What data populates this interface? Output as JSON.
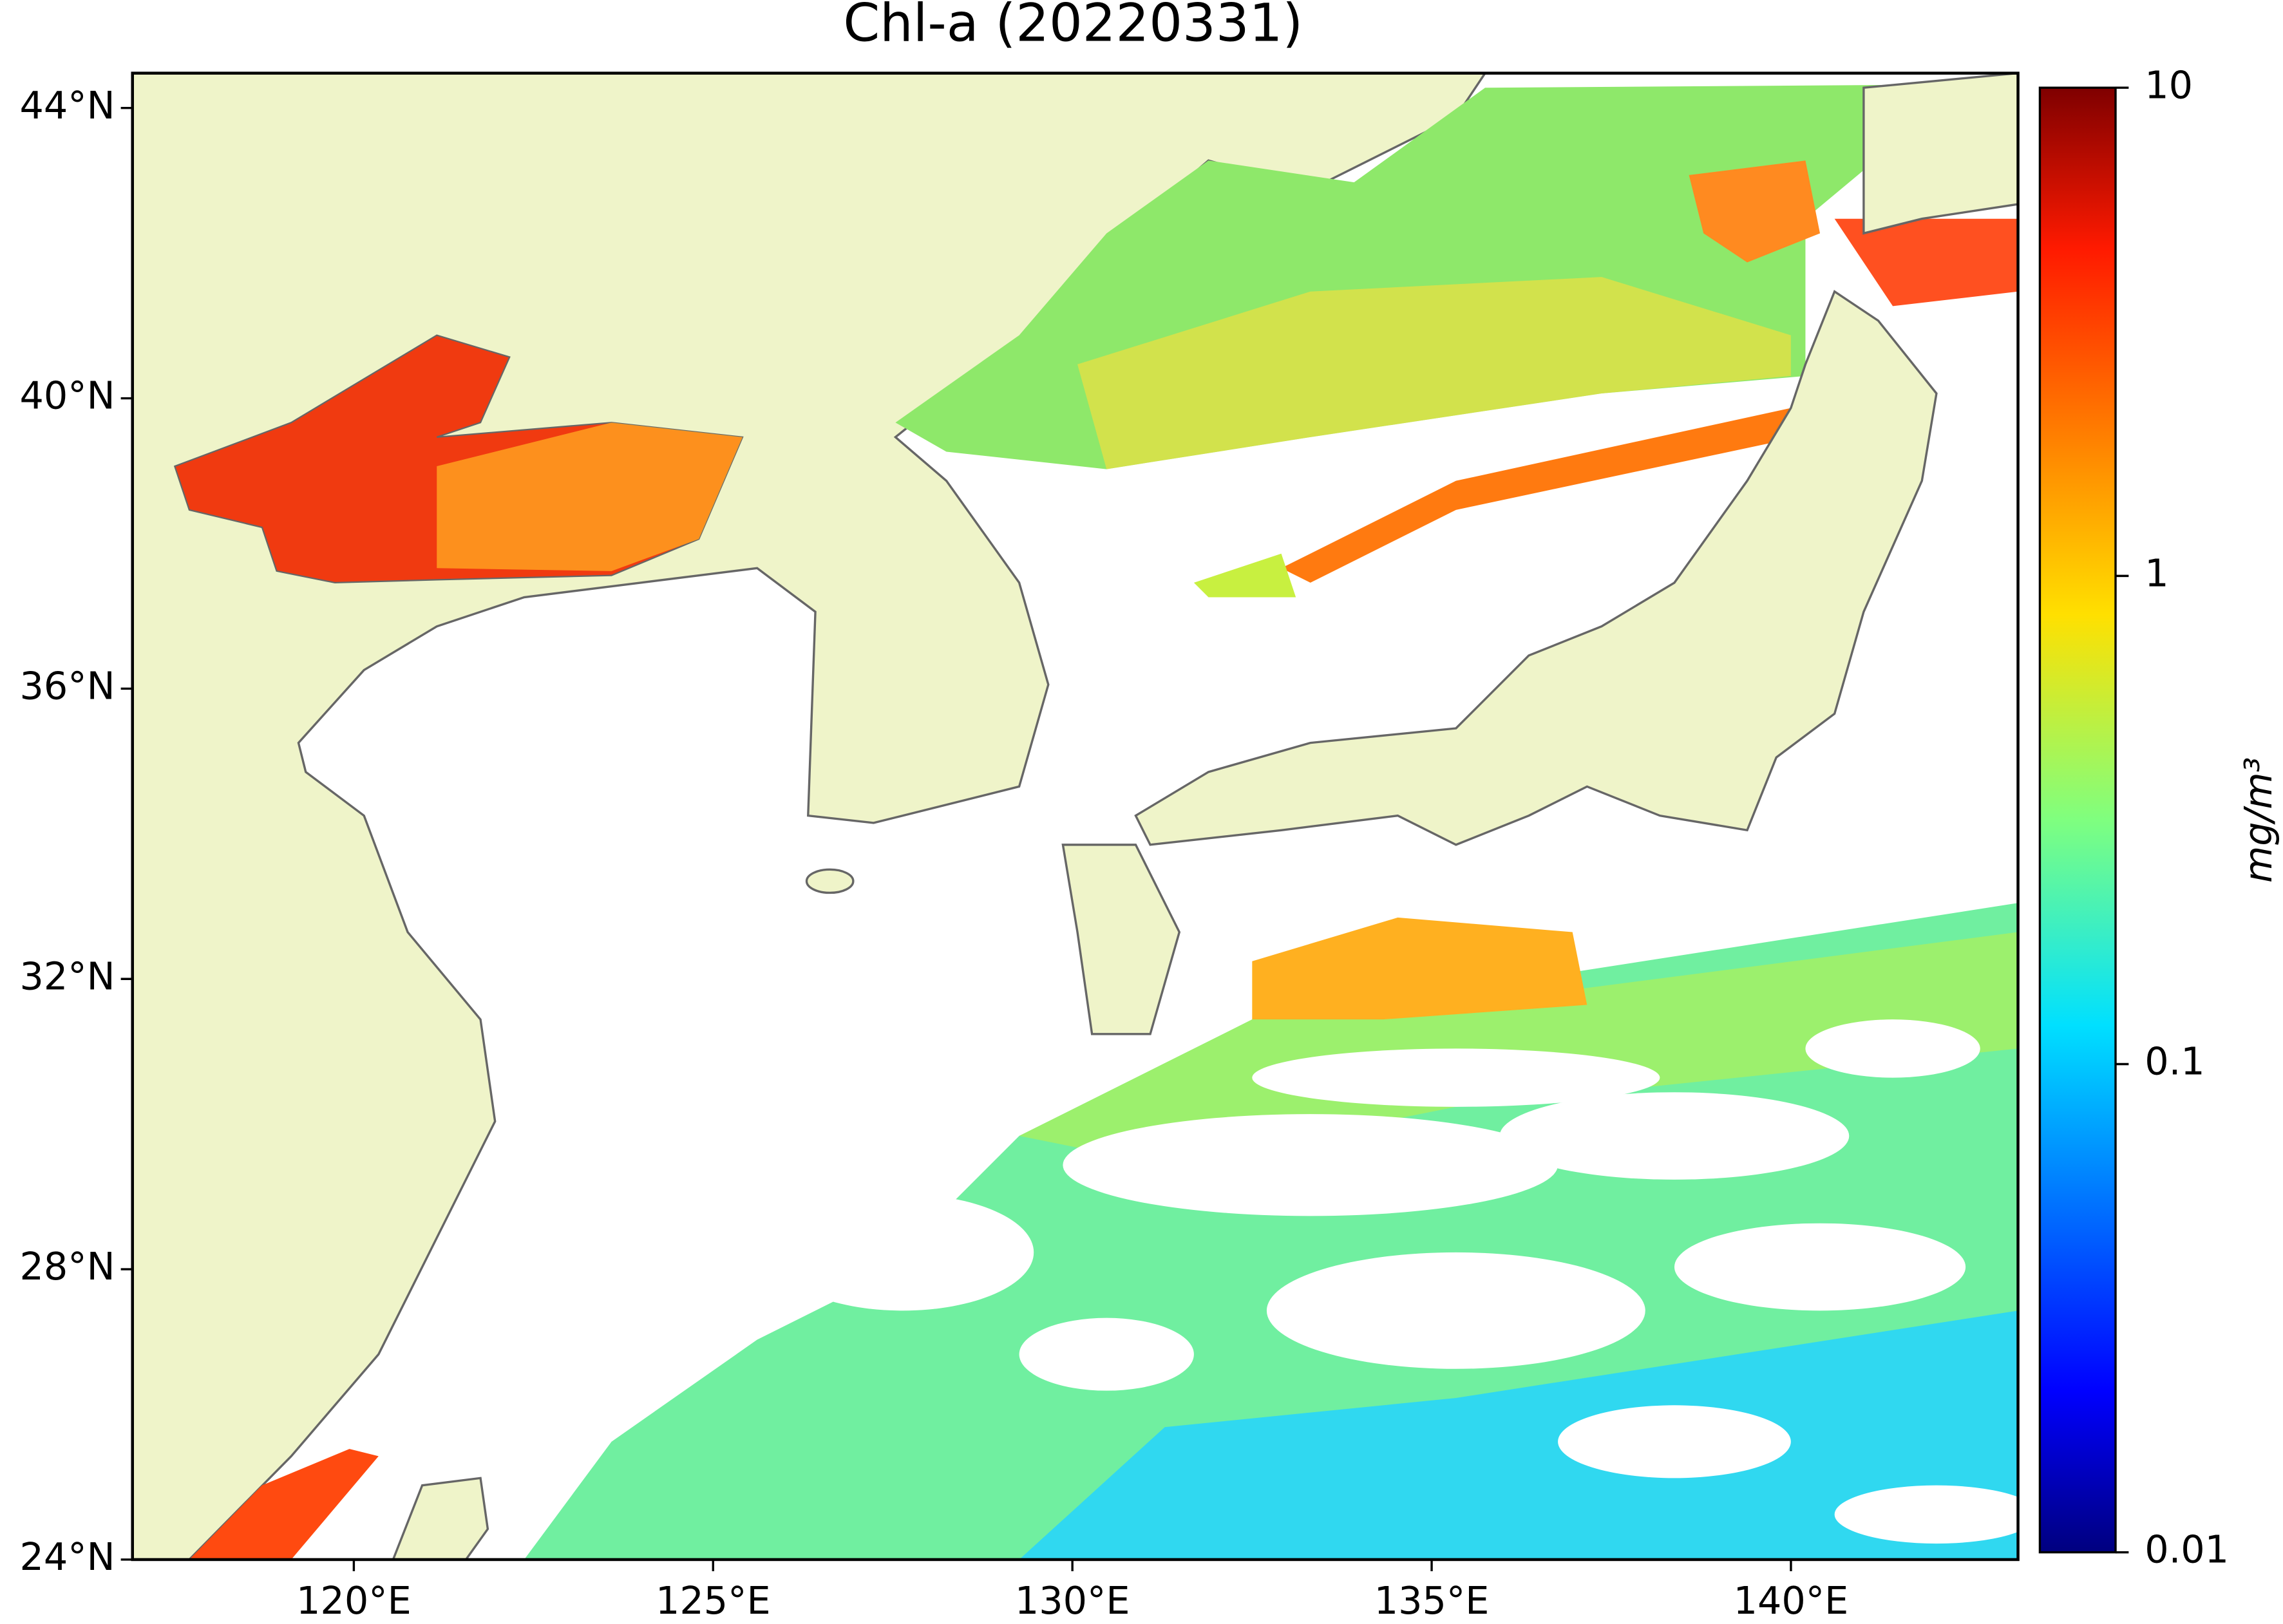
{
  "title": "Chl-a (20220331)",
  "map": {
    "xlim": [
      116.92,
      143.16
    ],
    "ylim": [
      24,
      44.48
    ],
    "xticks": [
      {
        "value": 120,
        "label": "120°E"
      },
      {
        "value": 125,
        "label": "125°E"
      },
      {
        "value": 130,
        "label": "130°E"
      },
      {
        "value": 135,
        "label": "135°E"
      },
      {
        "value": 140,
        "label": "140°E"
      }
    ],
    "yticks": [
      {
        "value": 24,
        "label": "24°N"
      },
      {
        "value": 28,
        "label": "28°N"
      },
      {
        "value": 32,
        "label": "32°N"
      },
      {
        "value": 36,
        "label": "36°N"
      },
      {
        "value": 40,
        "label": "40°N"
      },
      {
        "value": 44,
        "label": "44°N"
      }
    ]
  },
  "colorbar": {
    "label": "mg/m³",
    "scale": "log",
    "colormap": "jet",
    "lim": [
      0.01,
      10
    ],
    "ticks": [
      0.01,
      0.1,
      1,
      10
    ]
  }
}
